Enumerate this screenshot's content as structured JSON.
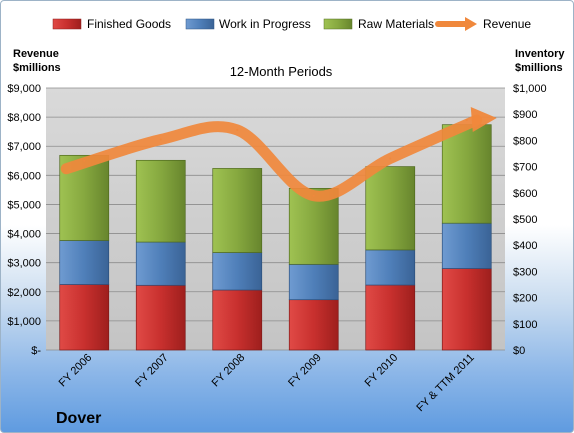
{
  "chart_data": {
    "type": "bar",
    "stacked": true,
    "categories": [
      "FY 2006",
      "FY 2007",
      "FY 2008",
      "FY 2009",
      "FY 2010",
      "FY & TTM 2011"
    ],
    "series": [
      {
        "name": "Finished Goods",
        "axis": "right",
        "color": "#c8302e",
        "values": [
          250,
          247,
          229,
          192,
          248,
          311
        ]
      },
      {
        "name": "Work in Progress",
        "axis": "right",
        "color": "#4f7fb9",
        "values": [
          168,
          165,
          143,
          135,
          134,
          173
        ]
      },
      {
        "name": "Raw Materials",
        "axis": "right",
        "color": "#86a83f",
        "values": [
          325,
          312,
          321,
          290,
          318,
          376
        ]
      },
      {
        "name": "Revenue",
        "axis": "left",
        "type": "line",
        "color": "#f0883c",
        "values": [
          6500,
          7230,
          7560,
          5300,
          6580,
          7900
        ]
      }
    ],
    "subtitle": "12-Month Periods",
    "ylabel_left": "Revenue $millions",
    "ylabel_right": "Inventory $millions",
    "ylim_left": [
      0,
      9000
    ],
    "ylim_right": [
      0,
      1000
    ],
    "left_ticks": [
      "$-",
      "$1,000",
      "$2,000",
      "$3,000",
      "$4,000",
      "$5,000",
      "$6,000",
      "$7,000",
      "$8,000",
      "$9,000"
    ],
    "right_ticks": [
      "$0",
      "$100",
      "$200",
      "$300",
      "$400",
      "$500",
      "$600",
      "$700",
      "$800",
      "$900",
      "$1,000"
    ],
    "grid": true,
    "legend_position": "top",
    "company": "Dover"
  }
}
